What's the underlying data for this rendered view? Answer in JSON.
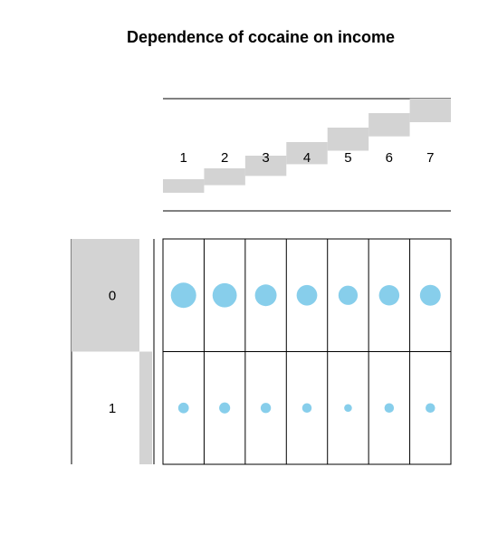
{
  "chart_data": {
    "type": "table",
    "title": "Dependence of cocaine on income",
    "column_categories": [
      "1",
      "2",
      "3",
      "4",
      "5",
      "6",
      "7"
    ],
    "row_categories": [
      "0",
      "1"
    ],
    "column_marginal_proportions": [
      0.095,
      0.118,
      0.142,
      0.155,
      0.162,
      0.163,
      0.165
    ],
    "row_marginal_proportions": [
      0.505,
      0.495
    ],
    "cell_values": [
      [
        0.85,
        0.78,
        0.62,
        0.56,
        0.49,
        0.55,
        0.57
      ],
      [
        0.15,
        0.16,
        0.14,
        0.12,
        0.08,
        0.12,
        0.12
      ]
    ],
    "colors": {
      "dot": "#87ceeb",
      "marginal_bar": "#d3d3d3",
      "lines": "#000000"
    }
  }
}
